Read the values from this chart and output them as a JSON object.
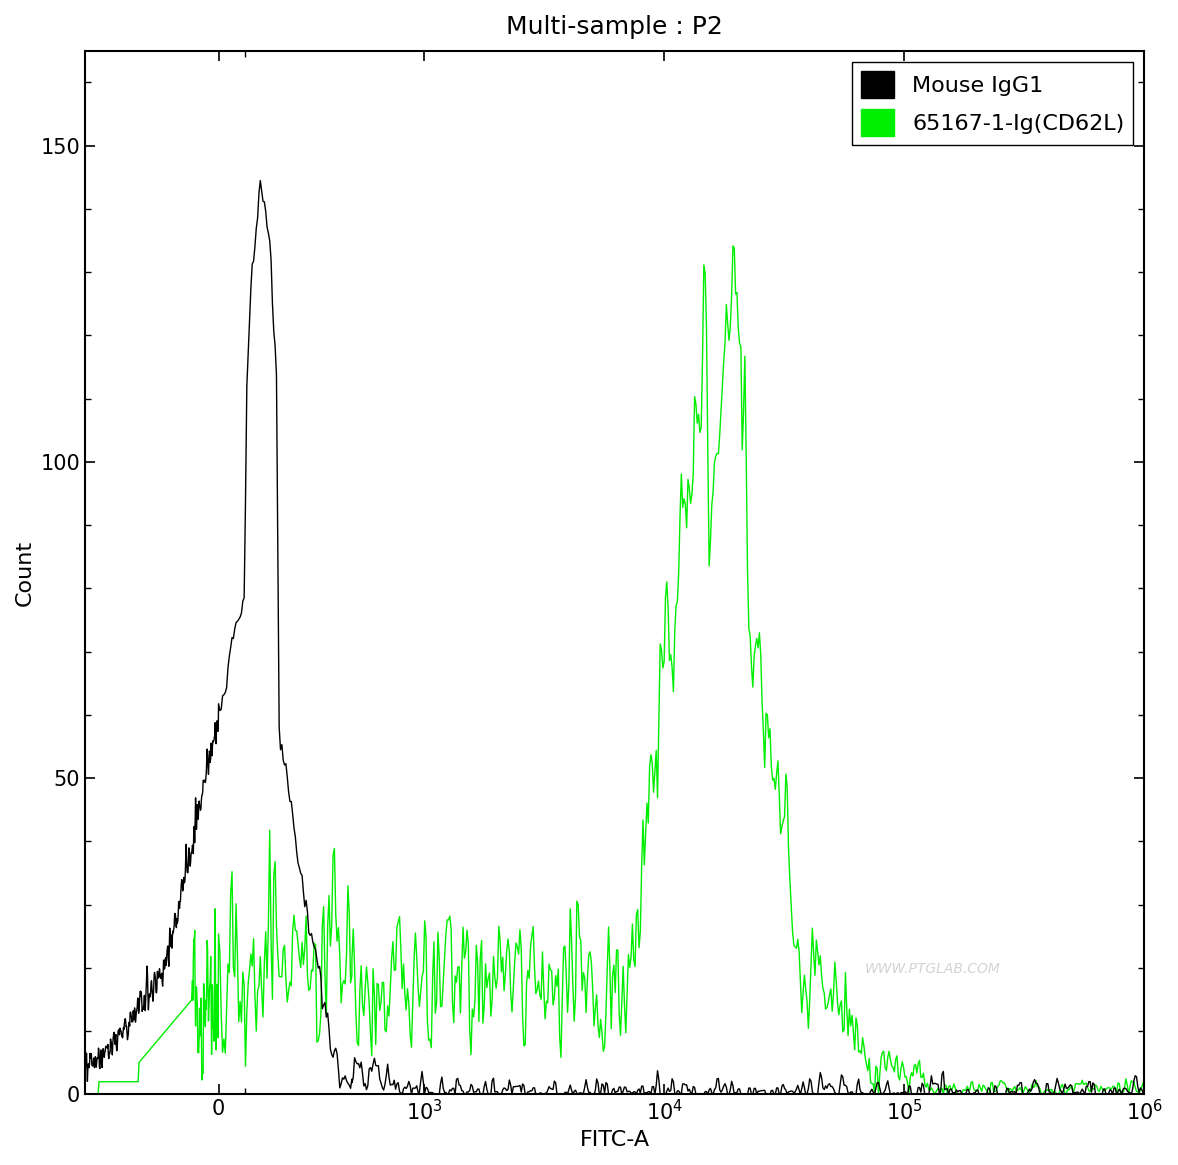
{
  "title": "Multi-sample : P2",
  "xlabel": "FITC-A",
  "ylabel": "Count",
  "ylim": [
    0,
    165
  ],
  "yticks": [
    0,
    50,
    100,
    150
  ],
  "bg_color": "#ffffff",
  "black_line_color": "#000000",
  "green_line_color": "#00ee00",
  "watermark": "WWW.PTGLAB.COM",
  "legend_labels": [
    "Mouse IgG1",
    "65167-1-Ig(CD62L)"
  ],
  "legend_colors": [
    "#000000",
    "#00ee00"
  ],
  "title_fontsize": 18,
  "axis_fontsize": 16,
  "tick_fontsize": 15,
  "linthresh": 500,
  "linscale": 0.5
}
